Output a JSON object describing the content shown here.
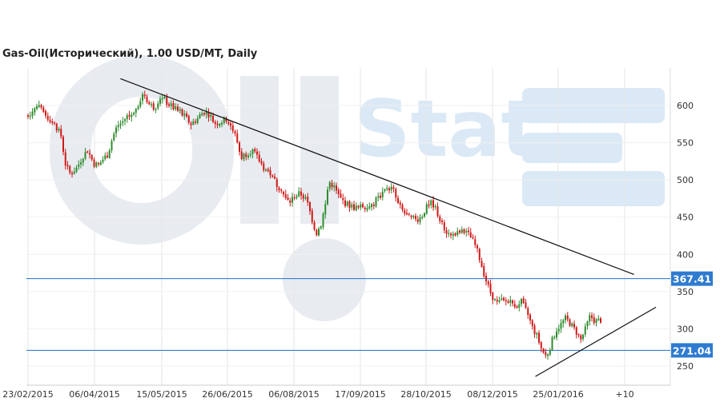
{
  "chart_data": {
    "type": "candlestick",
    "title": "Gas-Oil(Исторический), 1.00 USD/MT, Daily",
    "watermark": "Oil Stat",
    "y_ticks": [
      250,
      300,
      350,
      400,
      450,
      500,
      550,
      600
    ],
    "ylim": [
      222,
      648
    ],
    "x_ticks": [
      "23/02/2015",
      "06/04/2015",
      "15/05/2015",
      "26/06/2015",
      "06/08/2015",
      "17/09/2015",
      "28/10/2015",
      "08/12/2015",
      "25/01/2016",
      "+10"
    ],
    "horizontal_levels": [
      {
        "value": 367.41,
        "label": "367.41"
      },
      {
        "value": 271.04,
        "label": "271.04"
      }
    ],
    "trendlines": [
      {
        "name": "resistance",
        "from": {
          "date": "2015-04-23",
          "price": 636
        },
        "to": {
          "date": "2016-03-16",
          "price": 373
        }
      },
      {
        "name": "support",
        "from": {
          "date": "2016-01-13",
          "price": 236
        },
        "to": {
          "date": "2016-03-30",
          "price": 329
        }
      }
    ],
    "colors": {
      "up": "#2e8b2e",
      "down": "#d01818",
      "level_line": "#1f6fc4",
      "label_bg": "#2e7bd0",
      "label_text": "#ffffff",
      "grid": "#e6e6e6",
      "trendline": "#111111",
      "watermark": "#e8ecf1",
      "watermark_accent": "#dbe9f6"
    },
    "price_path": [
      [
        "2015-02-23",
        587
      ],
      [
        "2015-02-26",
        594
      ],
      [
        "2015-03-01",
        599
      ],
      [
        "2015-03-04",
        592
      ],
      [
        "2015-03-07",
        585
      ],
      [
        "2015-03-10",
        580
      ],
      [
        "2015-03-13",
        571
      ],
      [
        "2015-03-16",
        560
      ],
      [
        "2015-03-19",
        520
      ],
      [
        "2015-03-22",
        508
      ],
      [
        "2015-03-26",
        516
      ],
      [
        "2015-03-30",
        532
      ],
      [
        "2015-04-02",
        540
      ],
      [
        "2015-04-06",
        522
      ],
      [
        "2015-04-09",
        520
      ],
      [
        "2015-04-12",
        528
      ],
      [
        "2015-04-15",
        535
      ],
      [
        "2015-04-18",
        557
      ],
      [
        "2015-04-21",
        573
      ],
      [
        "2015-04-24",
        577
      ],
      [
        "2015-04-27",
        585
      ],
      [
        "2015-05-01",
        590
      ],
      [
        "2015-05-05",
        605
      ],
      [
        "2015-05-08",
        618
      ],
      [
        "2015-05-11",
        602
      ],
      [
        "2015-05-15",
        597
      ],
      [
        "2015-05-18",
        612
      ],
      [
        "2015-05-22",
        605
      ],
      [
        "2015-05-26",
        598
      ],
      [
        "2015-05-30",
        592
      ],
      [
        "2015-06-03",
        585
      ],
      [
        "2015-06-07",
        575
      ],
      [
        "2015-06-11",
        582
      ],
      [
        "2015-06-15",
        592
      ],
      [
        "2015-06-19",
        588
      ],
      [
        "2015-06-22",
        576
      ],
      [
        "2015-06-26",
        578
      ],
      [
        "2015-06-30",
        582
      ],
      [
        "2015-07-03",
        571
      ],
      [
        "2015-07-06",
        556
      ],
      [
        "2015-07-09",
        530
      ],
      [
        "2015-07-12",
        535
      ],
      [
        "2015-07-16",
        540
      ],
      [
        "2015-07-20",
        528
      ],
      [
        "2015-07-24",
        515
      ],
      [
        "2015-07-28",
        508
      ],
      [
        "2015-08-01",
        493
      ],
      [
        "2015-08-04",
        488
      ],
      [
        "2015-08-06",
        475
      ],
      [
        "2015-08-09",
        470
      ],
      [
        "2015-08-12",
        478
      ],
      [
        "2015-08-16",
        482
      ],
      [
        "2015-08-20",
        472
      ],
      [
        "2015-08-23",
        450
      ],
      [
        "2015-08-26",
        428
      ],
      [
        "2015-08-29",
        440
      ],
      [
        "2015-09-01",
        468
      ],
      [
        "2015-09-03",
        498
      ],
      [
        "2015-09-06",
        492
      ],
      [
        "2015-09-10",
        476
      ],
      [
        "2015-09-14",
        468
      ],
      [
        "2015-09-18",
        464
      ],
      [
        "2015-09-22",
        462
      ],
      [
        "2015-09-26",
        466
      ],
      [
        "2015-09-30",
        462
      ],
      [
        "2015-10-03",
        472
      ],
      [
        "2015-10-07",
        482
      ],
      [
        "2015-10-10",
        490
      ],
      [
        "2015-10-14",
        488
      ],
      [
        "2015-10-17",
        468
      ],
      [
        "2015-10-21",
        456
      ],
      [
        "2015-10-24",
        449
      ],
      [
        "2015-10-28",
        446
      ],
      [
        "2015-11-01",
        450
      ],
      [
        "2015-11-04",
        462
      ],
      [
        "2015-11-08",
        470
      ],
      [
        "2015-11-11",
        458
      ],
      [
        "2015-11-14",
        442
      ],
      [
        "2015-11-18",
        428
      ],
      [
        "2015-11-22",
        425
      ],
      [
        "2015-11-26",
        430
      ],
      [
        "2015-11-30",
        430
      ],
      [
        "2015-12-03",
        422
      ],
      [
        "2015-12-06",
        410
      ],
      [
        "2015-12-09",
        390
      ],
      [
        "2015-12-12",
        368
      ],
      [
        "2015-12-15",
        350
      ],
      [
        "2015-12-19",
        334
      ],
      [
        "2015-12-23",
        336
      ],
      [
        "2015-12-27",
        337
      ],
      [
        "2015-12-31",
        333
      ],
      [
        "2016-01-04",
        336
      ],
      [
        "2016-01-08",
        320
      ],
      [
        "2016-01-11",
        302
      ],
      [
        "2016-01-14",
        290
      ],
      [
        "2016-01-17",
        272
      ],
      [
        "2016-01-20",
        262
      ],
      [
        "2016-01-23",
        280
      ],
      [
        "2016-01-26",
        298
      ],
      [
        "2016-01-29",
        305
      ],
      [
        "2016-02-01",
        314
      ],
      [
        "2016-02-04",
        308
      ],
      [
        "2016-02-08",
        296
      ],
      [
        "2016-02-11",
        285
      ],
      [
        "2016-02-14",
        300
      ],
      [
        "2016-02-17",
        318
      ],
      [
        "2016-02-20",
        310
      ],
      [
        "2016-02-24",
        312
      ]
    ]
  }
}
